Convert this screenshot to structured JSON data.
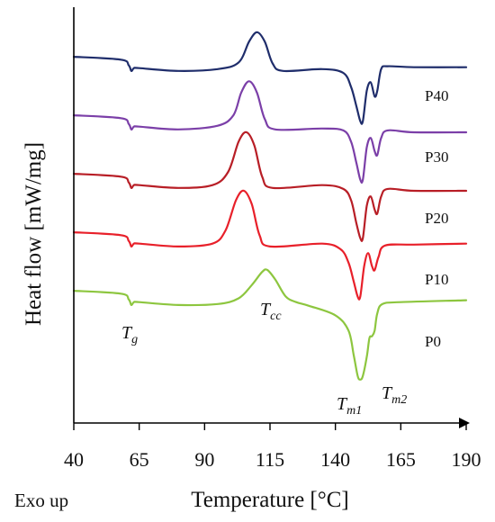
{
  "chart_data": {
    "type": "line",
    "title": "",
    "xlabel": "Temperature [°C]",
    "ylabel": "Heat flow [mW/mg]",
    "footnote": "Exo up",
    "xlim": [
      40,
      190
    ],
    "xticks": [
      "40",
      "65",
      "90",
      "115",
      "140",
      "165",
      "190"
    ],
    "grid": false,
    "legend": "none",
    "annotations": [
      {
        "base": "T",
        "sub": "g",
        "x": 62
      },
      {
        "base": "T",
        "sub": "cc",
        "x": 114
      },
      {
        "base": "T",
        "sub": "m1",
        "x": 150
      },
      {
        "base": "T",
        "sub": "m2",
        "x": 155
      }
    ],
    "series": [
      {
        "name": "P40",
        "color": "#1f2d6b",
        "offset": 4,
        "points": [
          [
            40,
            0.9
          ],
          [
            58,
            0.75
          ],
          [
            61,
            0.45
          ],
          [
            62,
            0.15
          ],
          [
            63,
            0.3
          ],
          [
            65,
            0.3
          ],
          [
            80,
            0.15
          ],
          [
            95,
            0.25
          ],
          [
            103,
            0.6
          ],
          [
            107,
            1.7
          ],
          [
            110,
            2.2
          ],
          [
            113,
            1.7
          ],
          [
            116,
            0.55
          ],
          [
            120,
            0.15
          ],
          [
            135,
            0.25
          ],
          [
            143,
            0.05
          ],
          [
            146,
            -0.7
          ],
          [
            148,
            -1.7
          ],
          [
            149.5,
            -2.5
          ],
          [
            150.5,
            -2.5
          ],
          [
            152,
            -0.9
          ],
          [
            153.5,
            -0.45
          ],
          [
            155,
            -1.2
          ],
          [
            156,
            -0.9
          ],
          [
            157.5,
            0.25
          ],
          [
            160,
            0.4
          ],
          [
            170,
            0.35
          ],
          [
            190,
            0.35
          ]
        ]
      },
      {
        "name": "P30",
        "color": "#7b3fa8",
        "offset": 3,
        "points": [
          [
            40,
            0.9
          ],
          [
            58,
            0.75
          ],
          [
            61,
            0.45
          ],
          [
            62,
            0.15
          ],
          [
            63,
            0.3
          ],
          [
            65,
            0.3
          ],
          [
            80,
            0.15
          ],
          [
            95,
            0.35
          ],
          [
            101,
            0.9
          ],
          [
            104,
            2.1
          ],
          [
            107,
            2.7
          ],
          [
            110,
            2.1
          ],
          [
            113,
            0.7
          ],
          [
            117,
            0.15
          ],
          [
            135,
            0.2
          ],
          [
            143,
            0.1
          ],
          [
            146,
            -0.5
          ],
          [
            148,
            -1.6
          ],
          [
            149.5,
            -2.5
          ],
          [
            150.5,
            -2.5
          ],
          [
            152,
            -0.8
          ],
          [
            153.5,
            -0.3
          ],
          [
            155,
            -1.0
          ],
          [
            156,
            -1.2
          ],
          [
            157.5,
            -0.3
          ],
          [
            160,
            0.1
          ],
          [
            170,
            0.0
          ],
          [
            190,
            0.0
          ]
        ]
      },
      {
        "name": "P20",
        "color": "#b81e26",
        "offset": 2,
        "points": [
          [
            40,
            0.9
          ],
          [
            58,
            0.75
          ],
          [
            61,
            0.45
          ],
          [
            62,
            0.15
          ],
          [
            63,
            0.3
          ],
          [
            65,
            0.3
          ],
          [
            80,
            0.15
          ],
          [
            93,
            0.3
          ],
          [
            99,
            1.0
          ],
          [
            103,
            2.6
          ],
          [
            106,
            3.1
          ],
          [
            109,
            2.4
          ],
          [
            112,
            0.75
          ],
          [
            116,
            0.15
          ],
          [
            135,
            0.3
          ],
          [
            143,
            0.1
          ],
          [
            146,
            -0.5
          ],
          [
            148,
            -1.7
          ],
          [
            149.5,
            -2.5
          ],
          [
            150.5,
            -2.5
          ],
          [
            152,
            -0.8
          ],
          [
            153.5,
            -0.3
          ],
          [
            155,
            -1.0
          ],
          [
            156,
            -1.2
          ],
          [
            157.5,
            -0.3
          ],
          [
            160,
            0.1
          ],
          [
            170,
            0.0
          ],
          [
            190,
            0.0
          ]
        ]
      },
      {
        "name": "P10",
        "color": "#e8202a",
        "offset": 1,
        "points": [
          [
            40,
            0.9
          ],
          [
            58,
            0.75
          ],
          [
            61,
            0.45
          ],
          [
            62,
            0.15
          ],
          [
            63,
            0.3
          ],
          [
            65,
            0.3
          ],
          [
            80,
            0.15
          ],
          [
            93,
            0.3
          ],
          [
            98,
            1.0
          ],
          [
            102,
            2.6
          ],
          [
            105,
            3.1
          ],
          [
            108,
            2.4
          ],
          [
            111,
            0.75
          ],
          [
            115,
            0.15
          ],
          [
            135,
            0.3
          ],
          [
            142,
            0.0
          ],
          [
            145,
            -0.7
          ],
          [
            147,
            -1.7
          ],
          [
            148.5,
            -2.5
          ],
          [
            149.5,
            -2.5
          ],
          [
            151,
            -0.9
          ],
          [
            152.5,
            -0.2
          ],
          [
            154,
            -0.9
          ],
          [
            155,
            -1.1
          ],
          [
            156.5,
            -0.4
          ],
          [
            159,
            0.2
          ],
          [
            170,
            0.25
          ],
          [
            190,
            0.3
          ]
        ]
      },
      {
        "name": "P0",
        "color": "#8dc63f",
        "offset": 0,
        "points": [
          [
            40,
            0.9
          ],
          [
            58,
            0.75
          ],
          [
            61,
            0.45
          ],
          [
            62,
            0.15
          ],
          [
            63,
            0.3
          ],
          [
            65,
            0.3
          ],
          [
            80,
            0.15
          ],
          [
            95,
            0.2
          ],
          [
            103,
            0.5
          ],
          [
            108,
            1.2
          ],
          [
            112,
            1.9
          ],
          [
            114,
            2.0
          ],
          [
            117,
            1.5
          ],
          [
            121,
            0.6
          ],
          [
            125,
            0.3
          ],
          [
            130,
            0.1
          ],
          [
            140,
            -0.4
          ],
          [
            145,
            -1.2
          ],
          [
            147,
            -2.5
          ],
          [
            148.5,
            -3.6
          ],
          [
            149.5,
            -3.8
          ],
          [
            150.5,
            -3.6
          ],
          [
            152,
            -2.6
          ],
          [
            153,
            -1.6
          ],
          [
            154,
            -1.5
          ],
          [
            155,
            -1.2
          ],
          [
            156,
            -0.3
          ],
          [
            158,
            0.2
          ],
          [
            165,
            0.3
          ],
          [
            190,
            0.4
          ]
        ]
      }
    ]
  }
}
